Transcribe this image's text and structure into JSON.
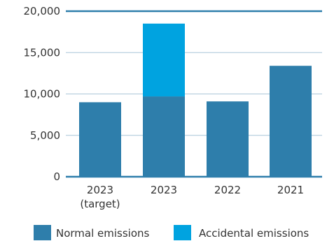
{
  "chart_data": {
    "type": "bar",
    "stacked": true,
    "title": "",
    "xlabel": "",
    "ylabel": "",
    "categories": [
      {
        "line1": "2023",
        "line2": "(target)"
      },
      {
        "line1": "2023",
        "line2": ""
      },
      {
        "line1": "2022",
        "line2": ""
      },
      {
        "line1": "2021",
        "line2": ""
      }
    ],
    "series": [
      {
        "name": "Normal emissions",
        "values": [
          9000,
          9700,
          9100,
          13400
        ],
        "color": "#2e7eab"
      },
      {
        "name": "Accidental emissions",
        "values": [
          0,
          8800,
          0,
          0
        ],
        "color": "#00a3e0"
      }
    ],
    "ylim": [
      0,
      20000
    ],
    "yticks": [
      {
        "value": 0,
        "label": "0"
      },
      {
        "value": 5000,
        "label": "5,000"
      },
      {
        "value": 10000,
        "label": "10,000"
      },
      {
        "value": 15000,
        "label": "15,000"
      },
      {
        "value": 20000,
        "label": "20,000"
      }
    ],
    "grid": true,
    "legend_position": "bottom",
    "axis_color": "#2e7eab",
    "grid_color": "#a9c5d8"
  }
}
